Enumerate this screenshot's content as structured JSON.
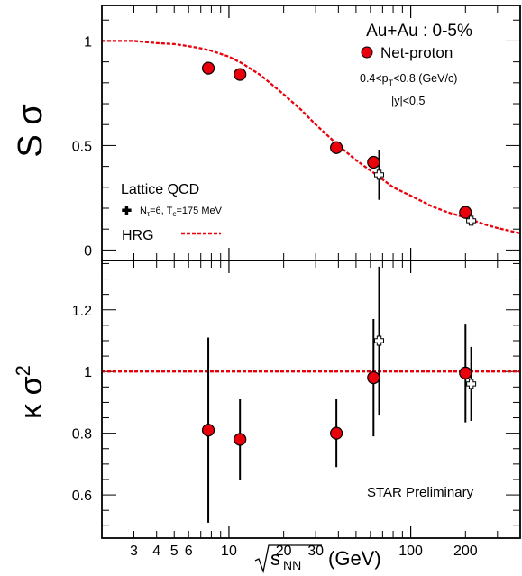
{
  "chart_data": [
    {
      "type": "scatter",
      "panel": "top",
      "ylabel": "S σ",
      "ylim": [
        -0.05,
        1.17
      ],
      "yticks": [
        "0",
        "0.5",
        "1"
      ],
      "x_scale": "log",
      "xlim": [
        2,
        400
      ],
      "annotations": {
        "system": "Au+Au : 0-5%",
        "series_label": "Net-proton",
        "pt_cut": "0.4<p",
        "pt_sub": "T",
        "pt_rest": "<0.8 (GeV/c)",
        "y_cut": "|y|<0.5",
        "lattice_title": "Lattice QCD",
        "lattice_params": "N",
        "lattice_sub1": "τ",
        "lattice_mid": "=6, T",
        "lattice_sub2": "c",
        "lattice_end": "=175 MeV",
        "hrg_label": "HRG"
      },
      "series": [
        {
          "name": "Net-proton",
          "color": "#e8000b",
          "points": [
            {
              "x": 7.7,
              "y": 0.87,
              "err": 0.02
            },
            {
              "x": 11.5,
              "y": 0.84,
              "err": 0.02
            },
            {
              "x": 39,
              "y": 0.49,
              "err": 0.02
            },
            {
              "x": 62.4,
              "y": 0.42,
              "err": 0.02
            },
            {
              "x": 200,
              "y": 0.18,
              "err": 0.02
            }
          ]
        },
        {
          "name": "Lattice QCD",
          "marker": "open-cross",
          "points": [
            {
              "x": 67,
              "y": 0.36,
              "err": 0.12
            },
            {
              "x": 215,
              "y": 0.14,
              "err": 0.0
            }
          ]
        },
        {
          "name": "HRG",
          "style": "dashed",
          "color": "#e8000b",
          "curve": [
            {
              "x": 2,
              "y": 1.0
            },
            {
              "x": 3,
              "y": 1.0
            },
            {
              "x": 4,
              "y": 0.99
            },
            {
              "x": 5,
              "y": 0.985
            },
            {
              "x": 6,
              "y": 0.975
            },
            {
              "x": 7,
              "y": 0.965
            },
            {
              "x": 8,
              "y": 0.953
            },
            {
              "x": 10,
              "y": 0.925
            },
            {
              "x": 12,
              "y": 0.89
            },
            {
              "x": 15,
              "y": 0.835
            },
            {
              "x": 20,
              "y": 0.745
            },
            {
              "x": 25,
              "y": 0.67
            },
            {
              "x": 30,
              "y": 0.6
            },
            {
              "x": 40,
              "y": 0.5
            },
            {
              "x": 50,
              "y": 0.43
            },
            {
              "x": 62.4,
              "y": 0.37
            },
            {
              "x": 80,
              "y": 0.3
            },
            {
              "x": 100,
              "y": 0.26
            },
            {
              "x": 130,
              "y": 0.21
            },
            {
              "x": 160,
              "y": 0.18
            },
            {
              "x": 200,
              "y": 0.155
            },
            {
              "x": 250,
              "y": 0.125
            },
            {
              "x": 300,
              "y": 0.105
            },
            {
              "x": 400,
              "y": 0.08
            }
          ]
        }
      ]
    },
    {
      "type": "scatter",
      "panel": "bottom",
      "ylabel": "κ σ",
      "ylabel_sup": "2",
      "ylim": [
        0.46,
        1.36
      ],
      "yticks": [
        "0.6",
        "0.8",
        "1",
        "1.2"
      ],
      "x_scale": "log",
      "xlim": [
        2,
        400
      ],
      "xlabel": "(GeV)",
      "xlabel_sqrt": "s",
      "xlabel_sub": "NN",
      "xticks": [
        "3",
        "4",
        "5",
        "6",
        "10",
        "20",
        "30",
        "100",
        "200"
      ],
      "annotations": {
        "preliminary": "STAR Preliminary"
      },
      "series": [
        {
          "name": "Net-proton",
          "color": "#e8000b",
          "points": [
            {
              "x": 7.7,
              "y": 0.81,
              "err": 0.3
            },
            {
              "x": 11.5,
              "y": 0.78,
              "err": 0.13
            },
            {
              "x": 39,
              "y": 0.8,
              "err": 0.11
            },
            {
              "x": 62.4,
              "y": 0.98,
              "err": 0.19
            },
            {
              "x": 200,
              "y": 0.995,
              "err": 0.16
            }
          ]
        },
        {
          "name": "Lattice QCD",
          "marker": "open-cross",
          "points": [
            {
              "x": 67,
              "y": 1.1,
              "err": 0.24
            },
            {
              "x": 215,
              "y": 0.96,
              "err": 0.12
            }
          ]
        },
        {
          "name": "HRG",
          "style": "dashed",
          "color": "#e8000b",
          "curve": [
            {
              "x": 2,
              "y": 1.0
            },
            {
              "x": 400,
              "y": 1.0
            }
          ]
        }
      ]
    }
  ]
}
